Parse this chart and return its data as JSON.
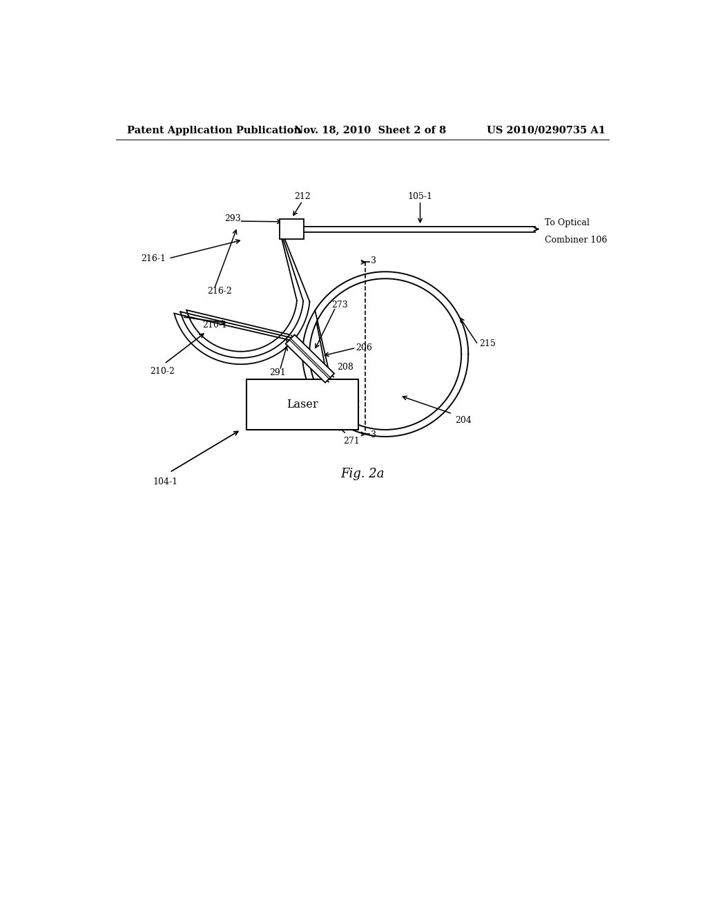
{
  "background_color": "#ffffff",
  "header_left": "Patent Application Publication",
  "header_mid": "Nov. 18, 2010  Sheet 2 of 8",
  "header_right": "US 2010/0290735 A1",
  "fig_label": "Fig. 2a",
  "title_fontsize": 10.5,
  "label_fontsize": 9,
  "fig_label_fontsize": 13
}
